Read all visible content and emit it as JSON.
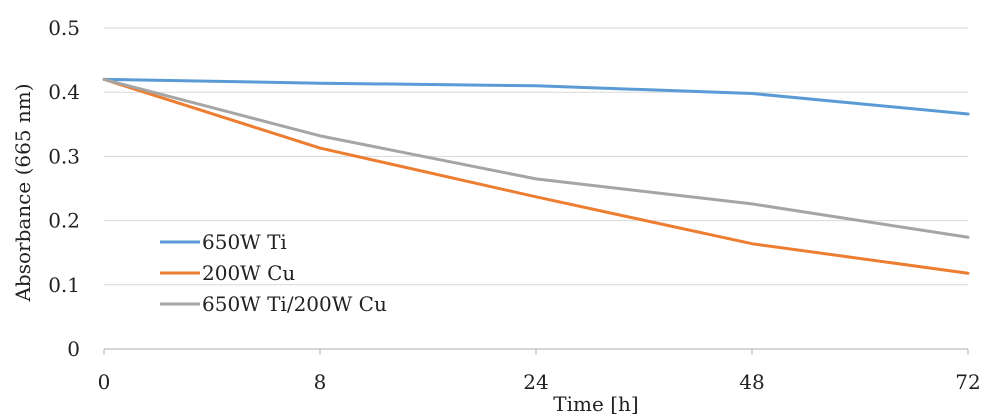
{
  "chart_data": {
    "type": "line",
    "title": "",
    "xlabel": "Time [h]",
    "ylabel": "Absorbance  (665 nm)",
    "categories": [
      "0",
      "8",
      "24",
      "48",
      "72"
    ],
    "ylim": [
      0,
      0.5
    ],
    "yticks": [
      "0",
      "0.1",
      "0.2",
      "0.3",
      "0.4",
      "0.5"
    ],
    "grid": "horizontal",
    "legend_position": "bottom-left",
    "series": [
      {
        "name": "650W Ti",
        "color": "#5b9bd5",
        "values": [
          0.42,
          0.414,
          0.41,
          0.398,
          0.366
        ]
      },
      {
        "name": "200W Cu",
        "color": "#ed7d31",
        "values": [
          0.42,
          0.313,
          0.237,
          0.164,
          0.118
        ]
      },
      {
        "name": "650W Ti/200W Cu",
        "color": "#a5a5a5",
        "values": [
          0.42,
          0.332,
          0.265,
          0.226,
          0.174
        ]
      }
    ]
  }
}
